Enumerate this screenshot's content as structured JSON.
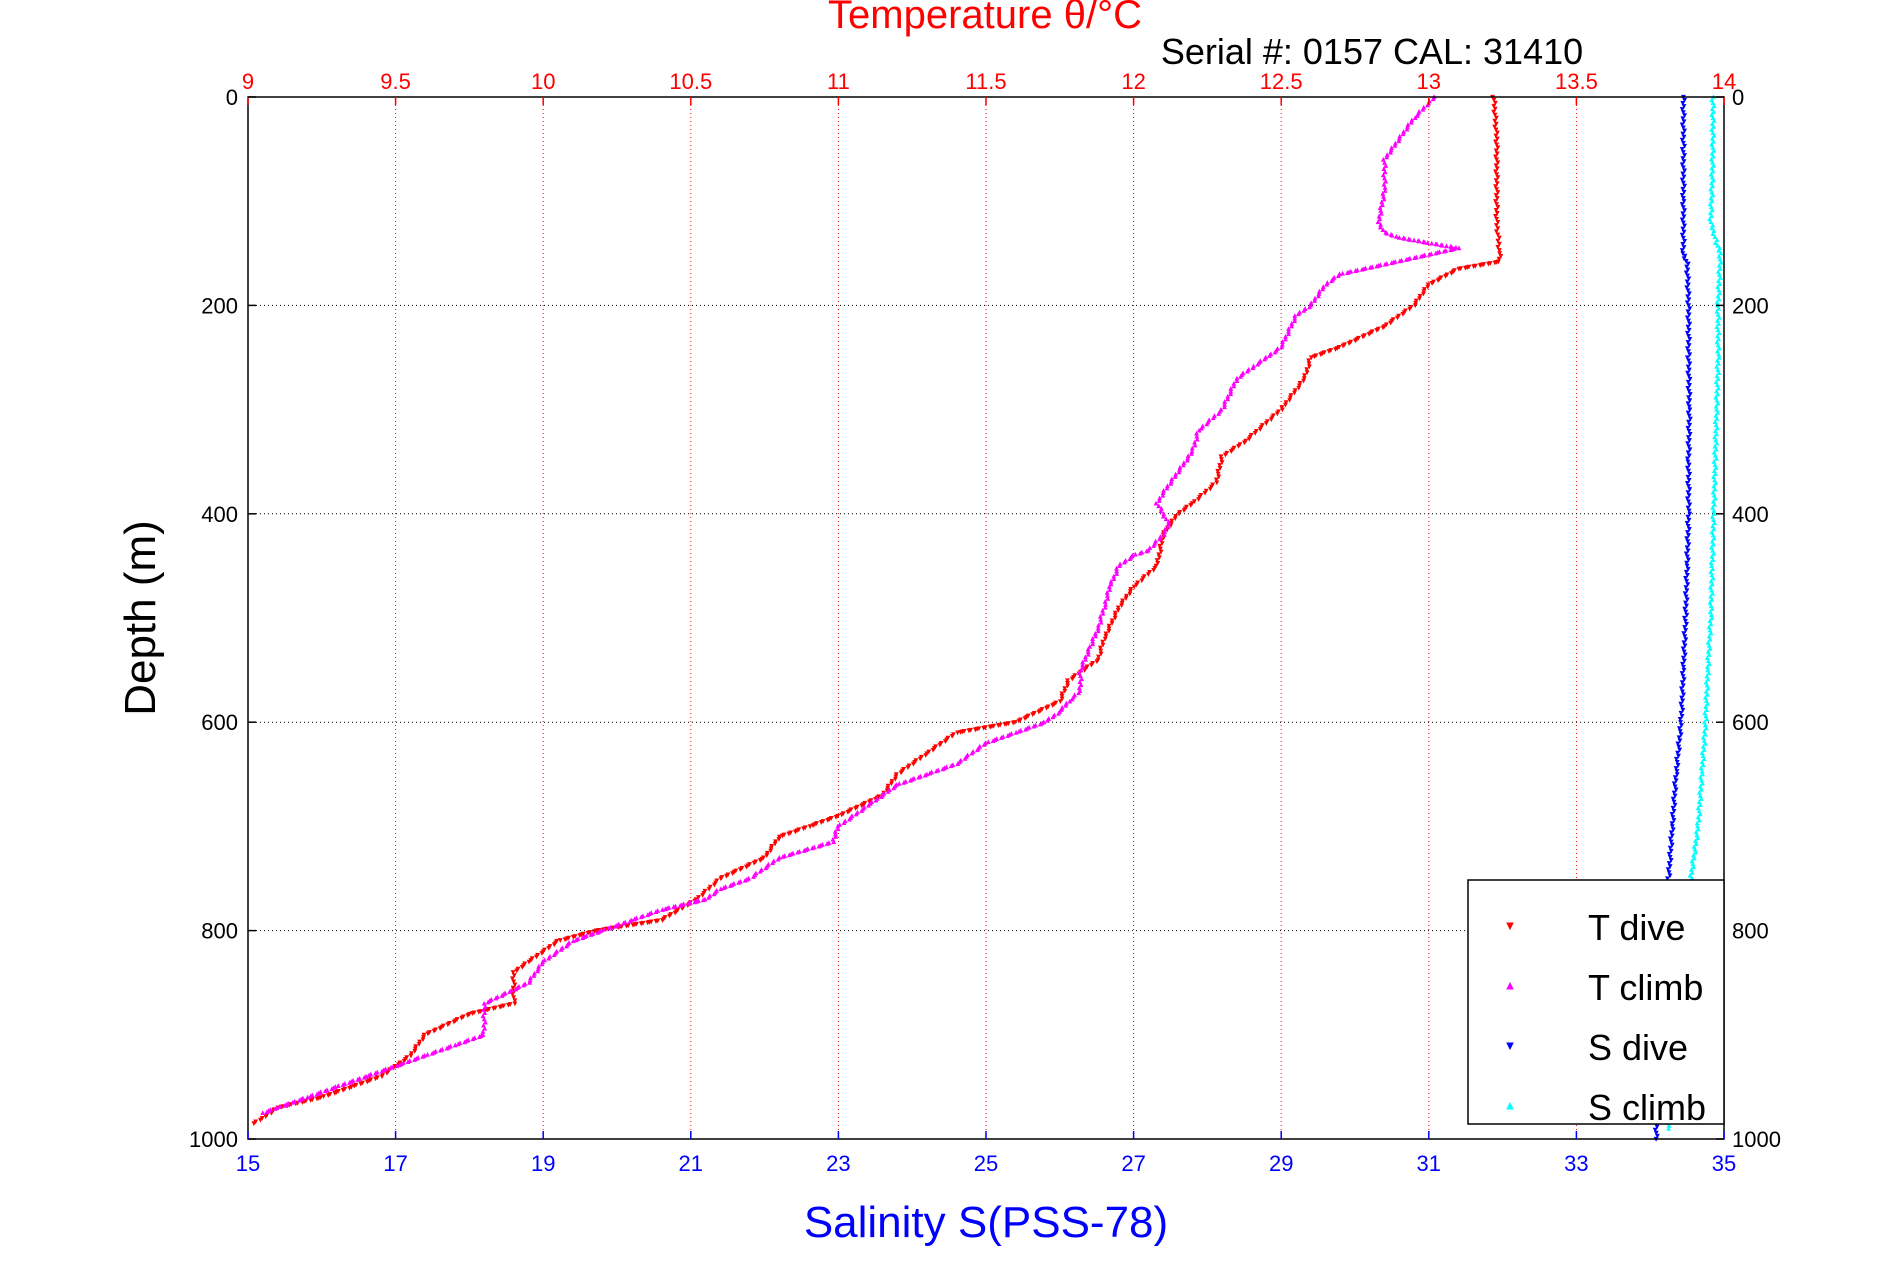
{
  "chart_data": {
    "type": "scatter",
    "title": "Temperature θ/°C",
    "subtitle": "Serial #: 0157  CAL: 31410",
    "ylabel": "Depth (m)",
    "xlabel": "Salinity S(PSS-78)",
    "ylim": [
      0,
      1000
    ],
    "y_reversed": true,
    "temperature_axis": {
      "position": "top",
      "lim": [
        9,
        14
      ],
      "ticks": [
        "9",
        "9.5",
        "10",
        "10.5",
        "11",
        "11.5",
        "12",
        "12.5",
        "13",
        "13.5",
        "14"
      ],
      "grid": true
    },
    "salinity_axis": {
      "position": "bottom",
      "lim": [
        15,
        35
      ],
      "ticks": [
        "15",
        "17",
        "19",
        "21",
        "23",
        "25",
        "27",
        "29",
        "31",
        "33",
        "35"
      ]
    },
    "depth_ticks": [
      "0",
      "200",
      "400",
      "600",
      "800",
      "1000"
    ],
    "depth_grid": true,
    "legend": {
      "placement": "bottom-right"
    },
    "colors": {
      "title": "#ff0000",
      "temperature_axis": "#ff0000",
      "salinity_axis": "#0000ff",
      "depth_axis": "#000000"
    },
    "series": [
      {
        "name": "T dive",
        "axis": "temperature",
        "color": "#ff0000",
        "marker": "triangle-down",
        "points": [
          [
            13.22,
            0
          ],
          [
            13.23,
            40
          ],
          [
            13.23,
            80
          ],
          [
            13.23,
            120
          ],
          [
            13.24,
            150
          ],
          [
            13.24,
            158
          ],
          [
            13.1,
            165
          ],
          [
            13.0,
            180
          ],
          [
            12.95,
            200
          ],
          [
            12.85,
            220
          ],
          [
            12.7,
            240
          ],
          [
            12.6,
            250
          ],
          [
            12.58,
            270
          ],
          [
            12.5,
            300
          ],
          [
            12.38,
            330
          ],
          [
            12.3,
            345
          ],
          [
            12.28,
            370
          ],
          [
            12.2,
            390
          ],
          [
            12.15,
            400
          ],
          [
            12.1,
            420
          ],
          [
            12.08,
            450
          ],
          [
            12.0,
            470
          ],
          [
            11.95,
            490
          ],
          [
            11.9,
            520
          ],
          [
            11.88,
            540
          ],
          [
            11.78,
            560
          ],
          [
            11.75,
            580
          ],
          [
            11.6,
            600
          ],
          [
            11.4,
            610
          ],
          [
            11.3,
            630
          ],
          [
            11.2,
            650
          ],
          [
            11.15,
            670
          ],
          [
            11.0,
            690
          ],
          [
            10.9,
            700
          ],
          [
            10.8,
            710
          ],
          [
            10.75,
            730
          ],
          [
            10.6,
            750
          ],
          [
            10.52,
            770
          ],
          [
            10.4,
            790
          ],
          [
            10.18,
            800
          ],
          [
            10.05,
            810
          ],
          [
            9.95,
            830
          ],
          [
            9.9,
            840
          ],
          [
            9.9,
            870
          ],
          [
            9.75,
            880
          ],
          [
            9.6,
            900
          ],
          [
            9.55,
            920
          ],
          [
            9.5,
            930
          ],
          [
            9.45,
            940
          ],
          [
            9.35,
            950
          ],
          [
            9.25,
            960
          ],
          [
            9.1,
            970
          ],
          [
            9.05,
            980
          ],
          [
            9.02,
            985
          ]
        ]
      },
      {
        "name": "T climb",
        "axis": "temperature",
        "color": "#ff00ff",
        "marker": "triangle-up",
        "points": [
          [
            13.02,
            0
          ],
          [
            12.95,
            20
          ],
          [
            12.9,
            40
          ],
          [
            12.85,
            60
          ],
          [
            12.85,
            90
          ],
          [
            12.83,
            120
          ],
          [
            12.85,
            130
          ],
          [
            12.9,
            135
          ],
          [
            13.0,
            140
          ],
          [
            13.1,
            145
          ],
          [
            12.7,
            170
          ],
          [
            12.65,
            180
          ],
          [
            12.6,
            200
          ],
          [
            12.55,
            210
          ],
          [
            12.5,
            240
          ],
          [
            12.45,
            250
          ],
          [
            12.4,
            260
          ],
          [
            12.35,
            270
          ],
          [
            12.3,
            300
          ],
          [
            12.22,
            320
          ],
          [
            12.2,
            340
          ],
          [
            12.15,
            360
          ],
          [
            12.1,
            380
          ],
          [
            12.08,
            390
          ],
          [
            12.1,
            400
          ],
          [
            12.12,
            410
          ],
          [
            12.1,
            420
          ],
          [
            12.05,
            435
          ],
          [
            12.0,
            440
          ],
          [
            11.95,
            450
          ],
          [
            11.92,
            470
          ],
          [
            11.9,
            490
          ],
          [
            11.88,
            510
          ],
          [
            11.85,
            530
          ],
          [
            11.82,
            550
          ],
          [
            11.82,
            570
          ],
          [
            11.78,
            580
          ],
          [
            11.75,
            590
          ],
          [
            11.7,
            600
          ],
          [
            11.6,
            610
          ],
          [
            11.5,
            620
          ],
          [
            11.4,
            640
          ],
          [
            11.3,
            650
          ],
          [
            11.2,
            660
          ],
          [
            11.1,
            680
          ],
          [
            11.0,
            700
          ],
          [
            10.98,
            715
          ],
          [
            10.8,
            730
          ],
          [
            10.7,
            750
          ],
          [
            10.6,
            760
          ],
          [
            10.55,
            770
          ],
          [
            10.4,
            780
          ],
          [
            10.3,
            790
          ],
          [
            10.2,
            800
          ],
          [
            10.1,
            810
          ],
          [
            10.0,
            830
          ],
          [
            9.95,
            850
          ],
          [
            9.8,
            870
          ],
          [
            9.8,
            900
          ],
          [
            9.7,
            910
          ],
          [
            9.6,
            920
          ],
          [
            9.5,
            930
          ],
          [
            9.4,
            940
          ],
          [
            9.3,
            950
          ],
          [
            9.2,
            960
          ],
          [
            9.1,
            970
          ],
          [
            9.05,
            975
          ]
        ]
      },
      {
        "name": "S dive",
        "axis": "salinity",
        "color": "#0000ff",
        "marker": "triangle-down",
        "points": [
          [
            34.45,
            0
          ],
          [
            34.45,
            50
          ],
          [
            34.45,
            100
          ],
          [
            34.45,
            150
          ],
          [
            34.5,
            160
          ],
          [
            34.52,
            200
          ],
          [
            34.52,
            250
          ],
          [
            34.53,
            300
          ],
          [
            34.52,
            350
          ],
          [
            34.52,
            400
          ],
          [
            34.5,
            450
          ],
          [
            34.48,
            500
          ],
          [
            34.45,
            550
          ],
          [
            34.42,
            600
          ],
          [
            34.35,
            650
          ],
          [
            34.3,
            700
          ],
          [
            34.25,
            750
          ],
          [
            34.2,
            800
          ],
          [
            34.15,
            850
          ],
          [
            34.12,
            900
          ],
          [
            34.1,
            950
          ],
          [
            34.08,
            1000
          ]
        ]
      },
      {
        "name": "S climb",
        "axis": "salinity",
        "color": "#00ffff",
        "marker": "triangle-up",
        "points": [
          [
            34.85,
            0
          ],
          [
            34.85,
            40
          ],
          [
            34.84,
            80
          ],
          [
            34.82,
            120
          ],
          [
            34.9,
            140
          ],
          [
            34.95,
            150
          ],
          [
            34.92,
            200
          ],
          [
            34.92,
            250
          ],
          [
            34.9,
            300
          ],
          [
            34.88,
            350
          ],
          [
            34.86,
            400
          ],
          [
            34.84,
            450
          ],
          [
            34.82,
            500
          ],
          [
            34.78,
            550
          ],
          [
            34.75,
            600
          ],
          [
            34.7,
            650
          ],
          [
            34.65,
            700
          ],
          [
            34.55,
            750
          ],
          [
            34.48,
            800
          ],
          [
            34.42,
            850
          ],
          [
            34.38,
            900
          ],
          [
            34.3,
            950
          ],
          [
            34.25,
            990
          ]
        ]
      }
    ]
  }
}
